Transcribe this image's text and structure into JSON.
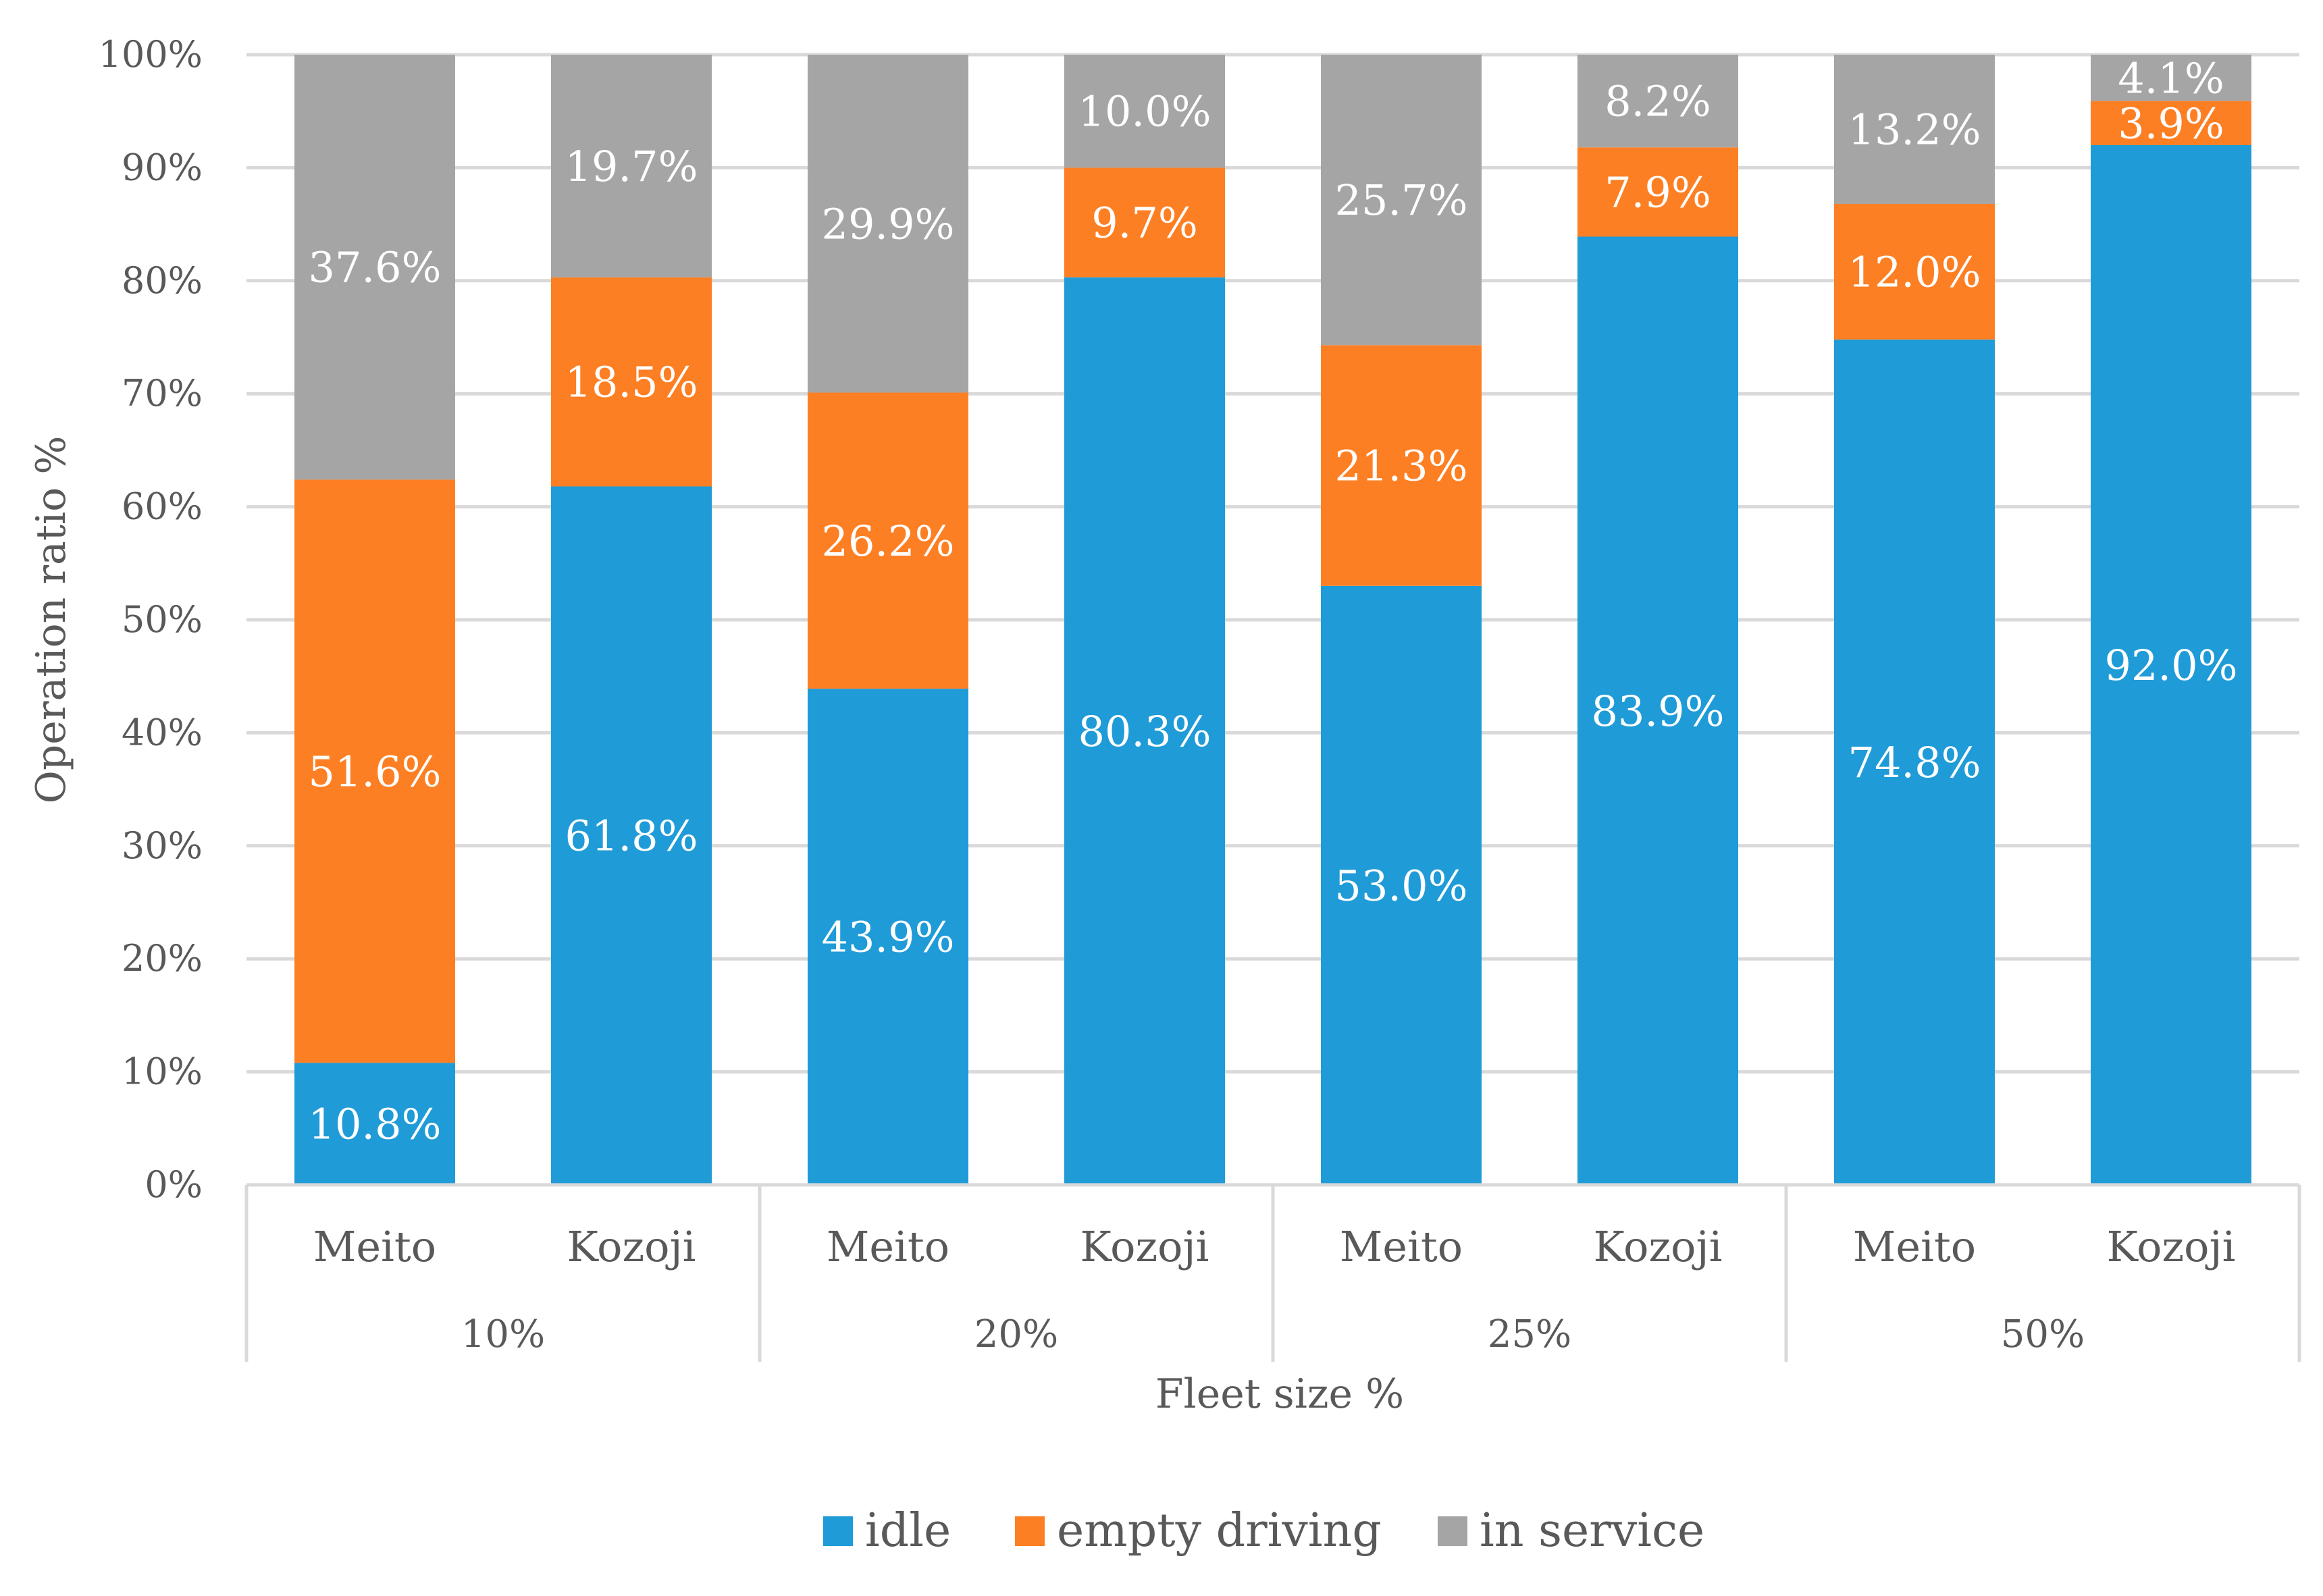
{
  "chart_data": {
    "type": "bar",
    "stacked": true,
    "title": "",
    "xlabel": "Fleet size %",
    "ylabel": "Operation ratio %",
    "ylim": [
      0,
      100
    ],
    "yticks": [
      "0%",
      "10%",
      "20%",
      "30%",
      "40%",
      "50%",
      "60%",
      "70%",
      "80%",
      "90%",
      "100%"
    ],
    "groups": [
      {
        "label": "10%",
        "categories": [
          "Meito",
          "Kozoji"
        ]
      },
      {
        "label": "20%",
        "categories": [
          "Meito",
          "Kozoji"
        ]
      },
      {
        "label": "25%",
        "categories": [
          "Meito",
          "Kozoji"
        ]
      },
      {
        "label": "50%",
        "categories": [
          "Meito",
          "Kozoji"
        ]
      }
    ],
    "categories": [
      "Meito",
      "Kozoji",
      "Meito",
      "Kozoji",
      "Meito",
      "Kozoji",
      "Meito",
      "Kozoji"
    ],
    "series": [
      {
        "name": "idle",
        "color": "#1f9bd7",
        "values": [
          10.8,
          61.8,
          43.9,
          80.3,
          53.0,
          83.9,
          74.8,
          92.0
        ],
        "labels": [
          "10.8%",
          "61.8%",
          "43.9%",
          "80.3%",
          "53.0%",
          "83.9%",
          "74.8%",
          "92.0%"
        ]
      },
      {
        "name": "empty driving",
        "color": "#fd7f23",
        "values": [
          51.6,
          18.5,
          26.2,
          9.7,
          21.3,
          7.9,
          12.0,
          3.9
        ],
        "labels": [
          "51.6%",
          "18.5%",
          "26.2%",
          "9.7%",
          "21.3%",
          "7.9%",
          "12.0%",
          "3.9%"
        ]
      },
      {
        "name": "in service",
        "color": "#a5a5a5",
        "values": [
          37.6,
          19.7,
          29.9,
          10.0,
          25.7,
          8.2,
          13.2,
          4.1
        ],
        "labels": [
          "37.6%",
          "19.7%",
          "29.9%",
          "10.0%",
          "25.7%",
          "8.2%",
          "13.2%",
          "4.1%"
        ]
      }
    ],
    "grid": true,
    "legend": "bottom-center"
  }
}
